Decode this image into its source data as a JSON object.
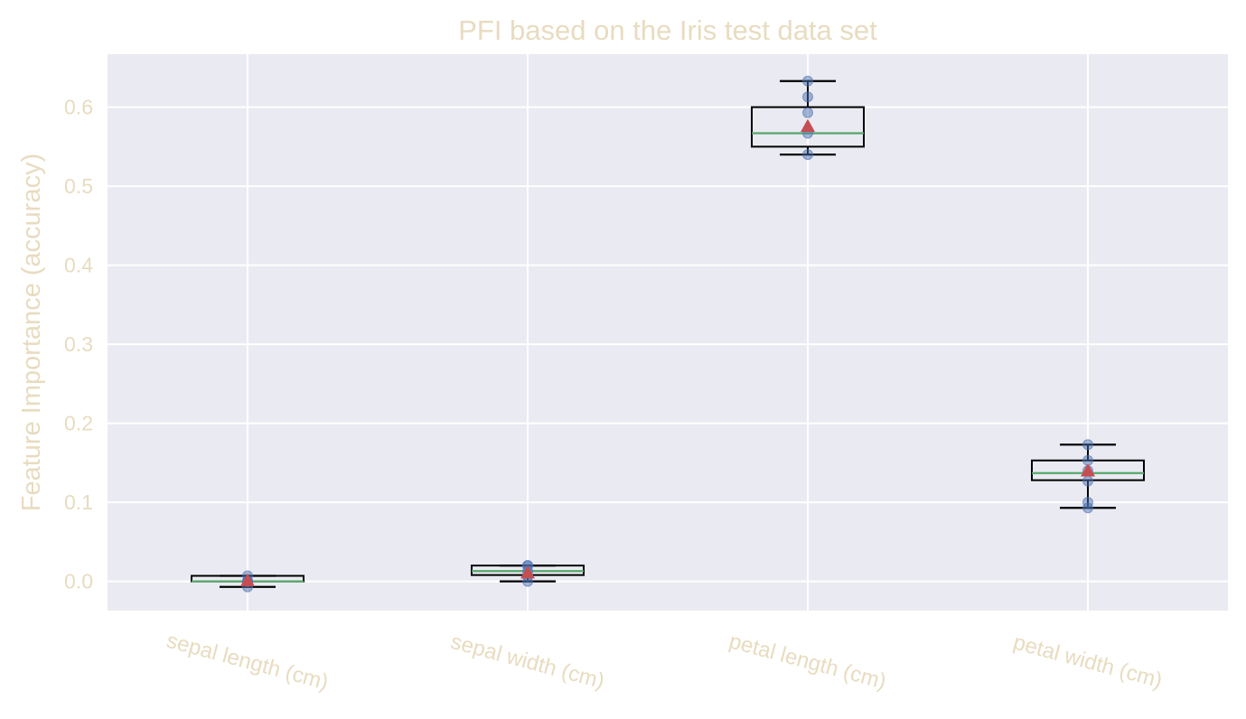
{
  "chart_data": {
    "type": "box",
    "title": "PFI based on the Iris test data set",
    "xlabel": "",
    "ylabel": "Feature Importance (accuracy)",
    "ylim": [
      -0.037,
      0.667
    ],
    "yticks": [
      0.0,
      0.1,
      0.2,
      0.3,
      0.4,
      0.5,
      0.6
    ],
    "ytick_labels": [
      "0.0",
      "0.1",
      "0.2",
      "0.3",
      "0.4",
      "0.5",
      "0.6"
    ],
    "grid": true,
    "categories": [
      "sepal length (cm)",
      "sepal width (cm)",
      "petal length (cm)",
      "petal width (cm)"
    ],
    "boxes": [
      {
        "whisker_low": -0.007,
        "q1": 0.0,
        "median": 0.0,
        "q3": 0.007,
        "whisker_high": 0.007,
        "mean": 0.001,
        "points": [
          -0.007,
          0.0,
          0.0,
          0.0,
          0.007
        ]
      },
      {
        "whisker_low": 0.0,
        "q1": 0.008,
        "median": 0.013,
        "q3": 0.02,
        "whisker_high": 0.02,
        "mean": 0.011,
        "points": [
          0.0,
          0.007,
          0.013,
          0.02,
          0.02
        ]
      },
      {
        "whisker_low": 0.54,
        "q1": 0.55,
        "median": 0.567,
        "q3": 0.6,
        "whisker_high": 0.633,
        "mean": 0.576,
        "points": [
          0.54,
          0.567,
          0.593,
          0.613,
          0.633
        ]
      },
      {
        "whisker_low": 0.093,
        "q1": 0.128,
        "median": 0.137,
        "q3": 0.153,
        "whisker_high": 0.173,
        "mean": 0.14,
        "points": [
          0.093,
          0.1,
          0.127,
          0.14,
          0.153,
          0.173
        ]
      }
    ],
    "colors": {
      "background": "#eaeaf2",
      "grid": "#ffffff",
      "box": "#000000",
      "median": "#55a868",
      "mean": "#c44e52",
      "points": "#4c72b0",
      "text": "#e8dcc0"
    }
  }
}
